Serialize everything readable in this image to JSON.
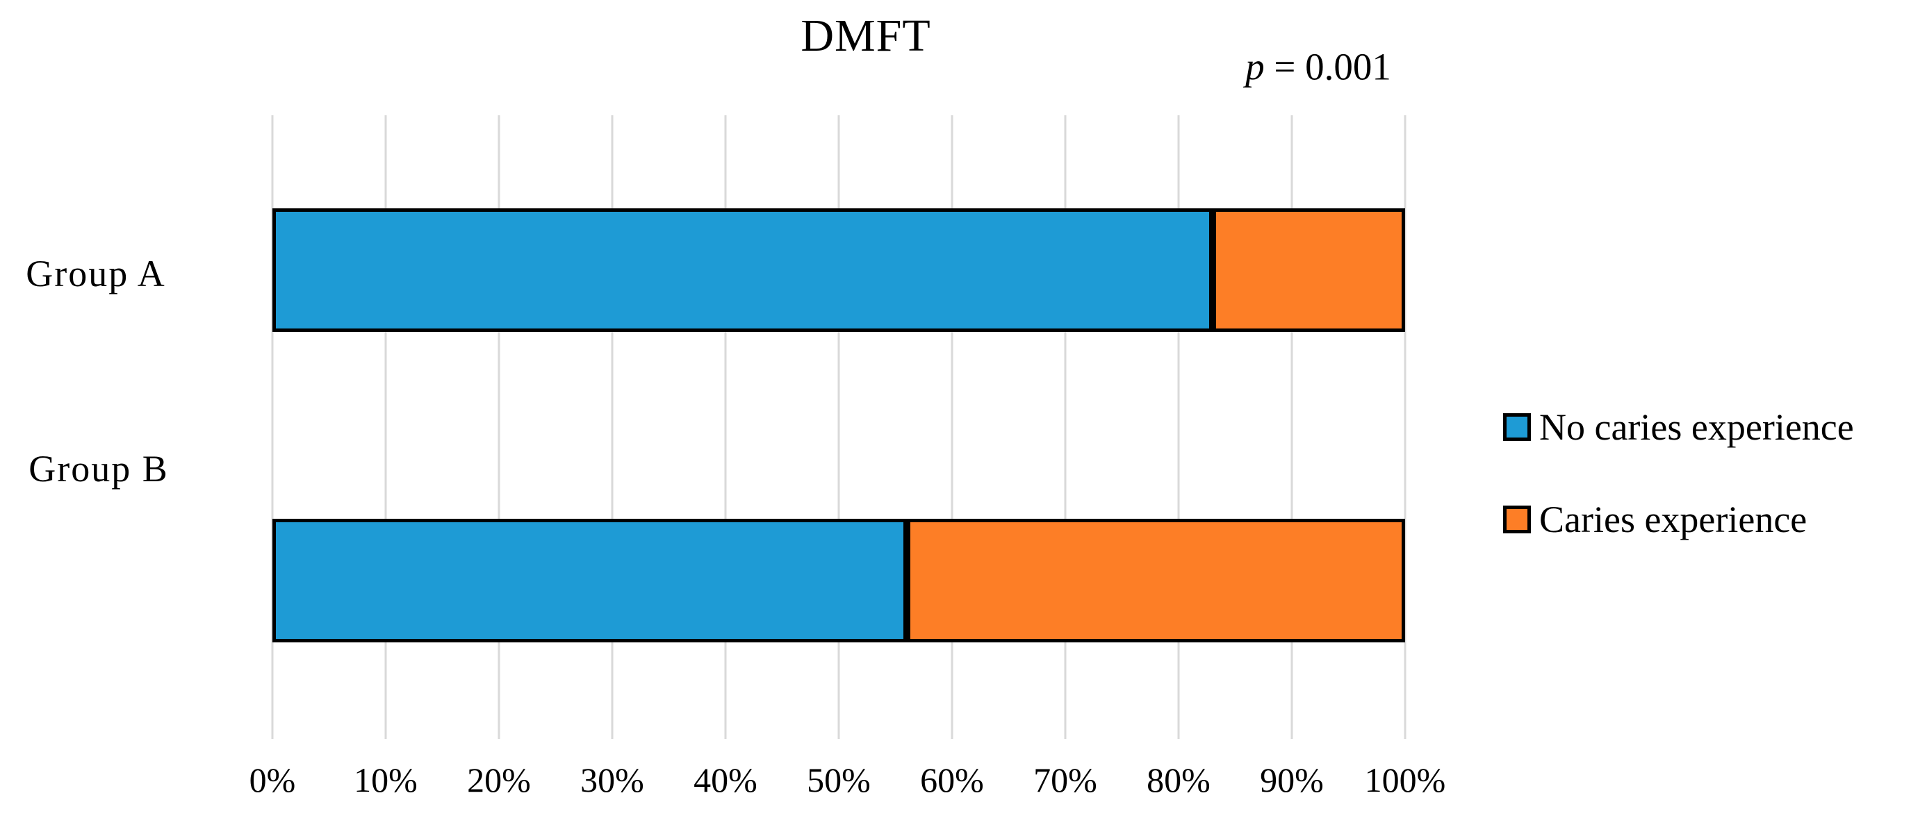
{
  "chart_data": {
    "type": "bar",
    "orientation": "horizontal",
    "stacked": true,
    "title": "DMFT",
    "p_value": {
      "symbol": "p",
      "rest": " = 0.001"
    },
    "categories": [
      "Group A",
      "Group B"
    ],
    "series": [
      {
        "name": "No caries experience",
        "color": "#1E9BD5",
        "values": [
          83,
          56
        ]
      },
      {
        "name": "Caries experience",
        "color": "#FD7E26",
        "values": [
          17,
          44
        ]
      }
    ],
    "x_axis": {
      "min": 0,
      "max": 100,
      "tick_step": 10,
      "ticks": [
        "0%",
        "10%",
        "20%",
        "30%",
        "40%",
        "50%",
        "60%",
        "70%",
        "80%",
        "90%",
        "100%"
      ]
    },
    "grid": true,
    "legend_position": "right",
    "colors": {
      "bar_border": "#000000",
      "gridline": "#D9D9D9",
      "text": "#000000",
      "background": "#FFFFFF"
    }
  }
}
